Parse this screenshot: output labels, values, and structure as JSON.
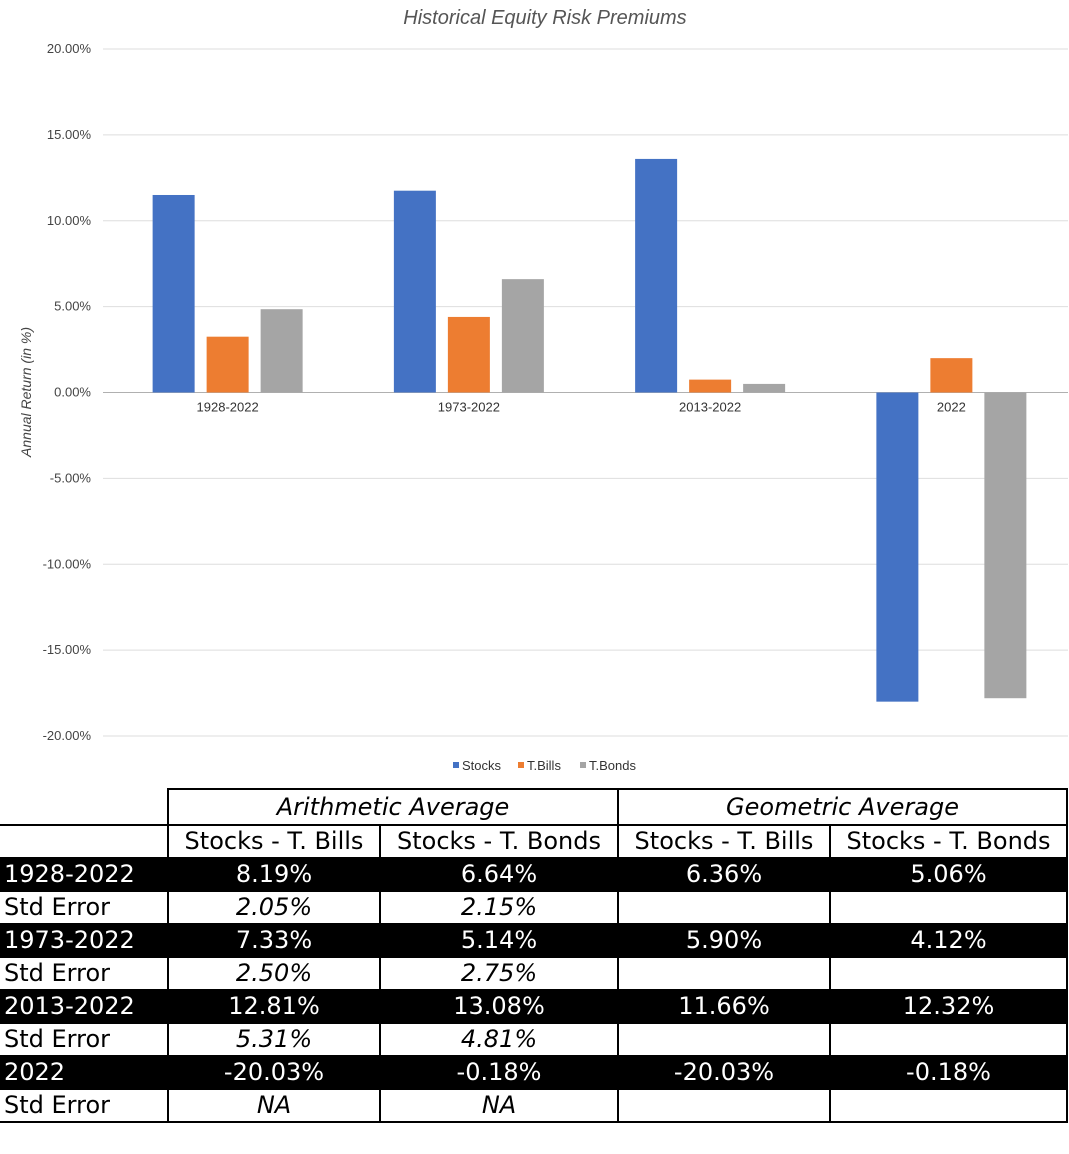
{
  "chart_data": {
    "type": "bar",
    "title": "Historical Equity Risk Premiums",
    "ylabel": "Annual Return (in %)",
    "xlabel": "",
    "categories": [
      "1928-2022",
      "1973-2022",
      "2013-2022",
      "2022"
    ],
    "series": [
      {
        "name": "Stocks",
        "color": "#4472c4",
        "values": [
          11.5,
          11.75,
          13.6,
          -18.0
        ]
      },
      {
        "name": "T.Bills",
        "color": "#ed7d31",
        "values": [
          3.25,
          4.4,
          0.75,
          2.0
        ]
      },
      {
        "name": "T.Bonds",
        "color": "#a5a5a5",
        "values": [
          4.85,
          6.6,
          0.5,
          -17.8
        ]
      }
    ],
    "ylim": [
      -20,
      20
    ],
    "yticks": [
      "20.00%",
      "15.00%",
      "10.00%",
      "5.00%",
      "0.00%",
      "-5.00%",
      "-10.00%",
      "-15.00%",
      "-20.00%"
    ],
    "ytick_values": [
      20,
      15,
      10,
      5,
      0,
      -5,
      -10,
      -15,
      -20
    ],
    "grid": true,
    "legend_position": "bottom-center"
  },
  "table": {
    "group_headers": [
      "Arithmetic Average",
      "Geometric Average"
    ],
    "sub_headers": [
      "Stocks - T. Bills",
      "Stocks - T. Bonds",
      "Stocks - T. Bills",
      "Stocks - T. Bonds"
    ],
    "rows": [
      {
        "label": "1928-2022",
        "style": "dark",
        "cells": [
          "8.19%",
          "6.64%",
          "6.36%",
          "5.06%"
        ]
      },
      {
        "label": "Std Error",
        "style": "light",
        "cells": [
          "2.05%",
          "2.15%",
          "",
          ""
        ]
      },
      {
        "label": "1973-2022",
        "style": "dark",
        "cells": [
          "7.33%",
          "5.14%",
          "5.90%",
          "4.12%"
        ]
      },
      {
        "label": "Std Error",
        "style": "light",
        "cells": [
          "2.50%",
          "2.75%",
          "",
          ""
        ]
      },
      {
        "label": "2013-2022",
        "style": "dark",
        "cells": [
          "12.81%",
          "13.08%",
          "11.66%",
          "12.32%"
        ]
      },
      {
        "label": "Std Error",
        "style": "light",
        "cells": [
          "5.31%",
          "4.81%",
          "",
          ""
        ]
      },
      {
        "label": "2022",
        "style": "dark",
        "cells": [
          "-20.03%",
          "-0.18%",
          "-20.03%",
          "-0.18%"
        ]
      },
      {
        "label": "Std Error",
        "style": "light",
        "cells": [
          "NA",
          "NA",
          "",
          ""
        ]
      }
    ]
  }
}
